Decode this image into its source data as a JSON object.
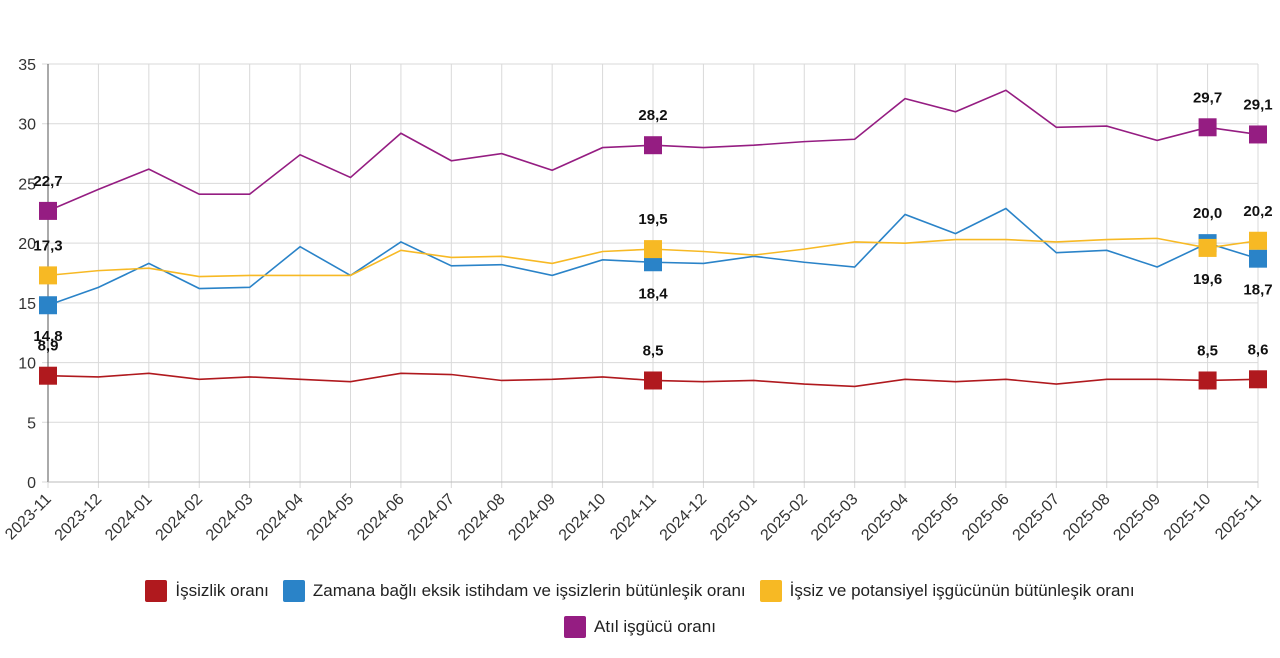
{
  "chart_data": {
    "type": "line",
    "title": "",
    "xlabel": "",
    "ylabel": "",
    "ylim": [
      0,
      35
    ],
    "yticks": [
      0,
      5,
      10,
      15,
      20,
      25,
      30,
      35
    ],
    "grid": true,
    "legend_position": "bottom",
    "categories": [
      "2023-11",
      "2023-12",
      "2024-01",
      "2024-02",
      "2024-03",
      "2024-04",
      "2024-05",
      "2024-06",
      "2024-07",
      "2024-08",
      "2024-09",
      "2024-10",
      "2024-11",
      "2024-12",
      "2025-01",
      "2025-02",
      "2025-03",
      "2025-04",
      "2025-05",
      "2025-06",
      "2025-07",
      "2025-08",
      "2025-09",
      "2025-10",
      "2025-11"
    ],
    "series": [
      {
        "name": "İşsizlik oranı",
        "color": "#B0191E",
        "values": [
          8.9,
          8.8,
          9.1,
          8.6,
          8.8,
          8.6,
          8.4,
          9.1,
          9.0,
          8.5,
          8.6,
          8.8,
          8.5,
          8.4,
          8.5,
          8.2,
          8.0,
          8.6,
          8.4,
          8.6,
          8.2,
          8.6,
          8.6,
          8.5,
          8.6
        ],
        "labels": [
          {
            "i": 0,
            "text": "8,9",
            "pos": "above"
          },
          {
            "i": 12,
            "text": "8,5",
            "pos": "above"
          },
          {
            "i": 23,
            "text": "8,5",
            "pos": "above"
          },
          {
            "i": 24,
            "text": "8,6",
            "pos": "above"
          }
        ]
      },
      {
        "name": "Zamana bağlı eksik istihdam ve işsizlerin bütünleşik oranı",
        "color": "#2A83C8",
        "values": [
          14.8,
          16.3,
          18.3,
          16.2,
          16.3,
          19.7,
          17.3,
          20.1,
          18.1,
          18.2,
          17.3,
          18.6,
          18.4,
          18.3,
          18.9,
          18.4,
          18.0,
          22.4,
          20.8,
          22.9,
          19.2,
          19.4,
          18.0,
          20.0,
          18.7
        ],
        "labels": [
          {
            "i": 0,
            "text": "14,8",
            "pos": "below"
          },
          {
            "i": 12,
            "text": "18,4",
            "pos": "below"
          },
          {
            "i": 23,
            "text": "20,0",
            "pos": "above"
          },
          {
            "i": 24,
            "text": "18,7",
            "pos": "below"
          }
        ]
      },
      {
        "name": "İşsiz ve potansiyel işgücünün bütünleşik oranı",
        "color": "#F7B924",
        "values": [
          17.3,
          17.7,
          17.9,
          17.2,
          17.3,
          17.3,
          17.3,
          19.4,
          18.8,
          18.9,
          18.3,
          19.3,
          19.5,
          19.3,
          19.0,
          19.5,
          20.1,
          20.0,
          20.3,
          20.3,
          20.1,
          20.3,
          20.4,
          19.6,
          20.2
        ],
        "labels": [
          {
            "i": 0,
            "text": "17,3",
            "pos": "above"
          },
          {
            "i": 12,
            "text": "19,5",
            "pos": "above"
          },
          {
            "i": 23,
            "text": "19,6",
            "pos": "below"
          },
          {
            "i": 24,
            "text": "20,2",
            "pos": "above"
          }
        ]
      },
      {
        "name": "Atıl işgücü oranı",
        "color": "#951D82",
        "values": [
          22.7,
          24.5,
          26.2,
          24.1,
          24.1,
          27.4,
          25.5,
          29.2,
          26.9,
          27.5,
          26.1,
          28.0,
          28.2,
          28.0,
          28.2,
          28.5,
          28.7,
          32.1,
          31.0,
          32.8,
          29.7,
          29.8,
          28.6,
          29.7,
          29.1
        ],
        "labels": [
          {
            "i": 0,
            "text": "22,7",
            "pos": "above"
          },
          {
            "i": 12,
            "text": "28,2",
            "pos": "above"
          },
          {
            "i": 23,
            "text": "29,7",
            "pos": "above"
          },
          {
            "i": 24,
            "text": "29,1",
            "pos": "above"
          }
        ]
      }
    ]
  },
  "legend": {
    "items": [
      {
        "label": "İşsizlik oranı",
        "color": "#B0191E"
      },
      {
        "label": "Zamana bağlı eksik istihdam ve işsizlerin bütünleşik oranı",
        "color": "#2A83C8"
      },
      {
        "label": "İşsiz ve potansiyel işgücünün bütünleşik oranı",
        "color": "#F7B924"
      },
      {
        "label": "Atıl işgücü oranı",
        "color": "#951D82"
      }
    ]
  }
}
